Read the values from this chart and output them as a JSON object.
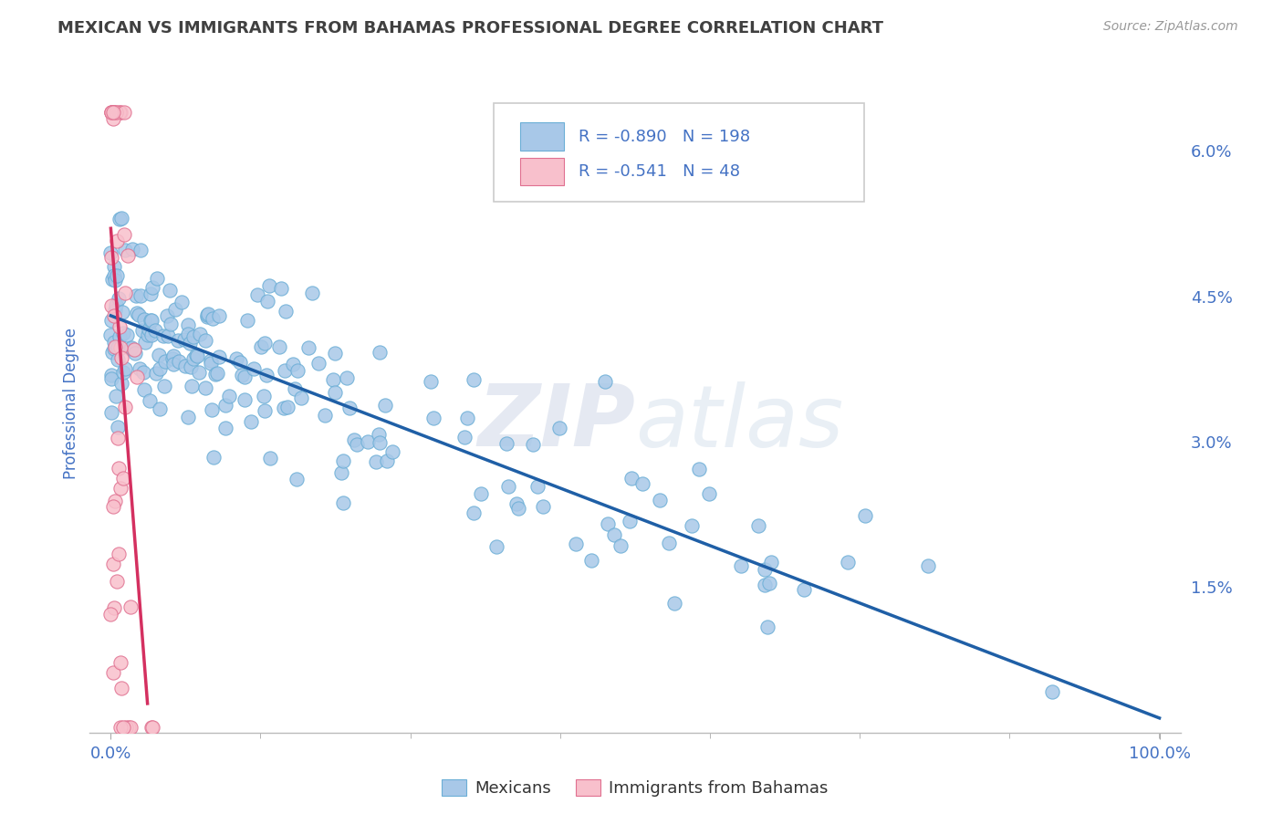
{
  "title": "MEXICAN VS IMMIGRANTS FROM BAHAMAS PROFESSIONAL DEGREE CORRELATION CHART",
  "source": "Source: ZipAtlas.com",
  "ylabel": "Professional Degree",
  "y_tick_values_right": [
    1.5,
    3.0,
    4.5,
    6.0
  ],
  "xlim": [
    -2,
    102
  ],
  "ylim": [
    0,
    6.8
  ],
  "legend_R1": "-0.890",
  "legend_N1": "198",
  "legend_R2": "-0.541",
  "legend_N2": "48",
  "legend_label1": "Mexicans",
  "legend_label2": "Immigrants from Bahamas",
  "blue_color": "#a8c8e8",
  "blue_edge_color": "#6baed6",
  "blue_line_color": "#1f5fa6",
  "pink_color": "#f8c0cc",
  "pink_edge_color": "#e07090",
  "pink_line_color": "#d43060",
  "watermark": "ZIPatlas",
  "title_color": "#404040",
  "axis_label_color": "#4472c4",
  "tick_label_color": "#4472c4",
  "background_color": "#ffffff",
  "grid_color": "#cccccc",
  "blue_line_x": [
    0,
    100
  ],
  "blue_line_y": [
    4.3,
    0.15
  ],
  "pink_line_x": [
    0,
    3.5
  ],
  "pink_line_y": [
    5.2,
    0.3
  ]
}
